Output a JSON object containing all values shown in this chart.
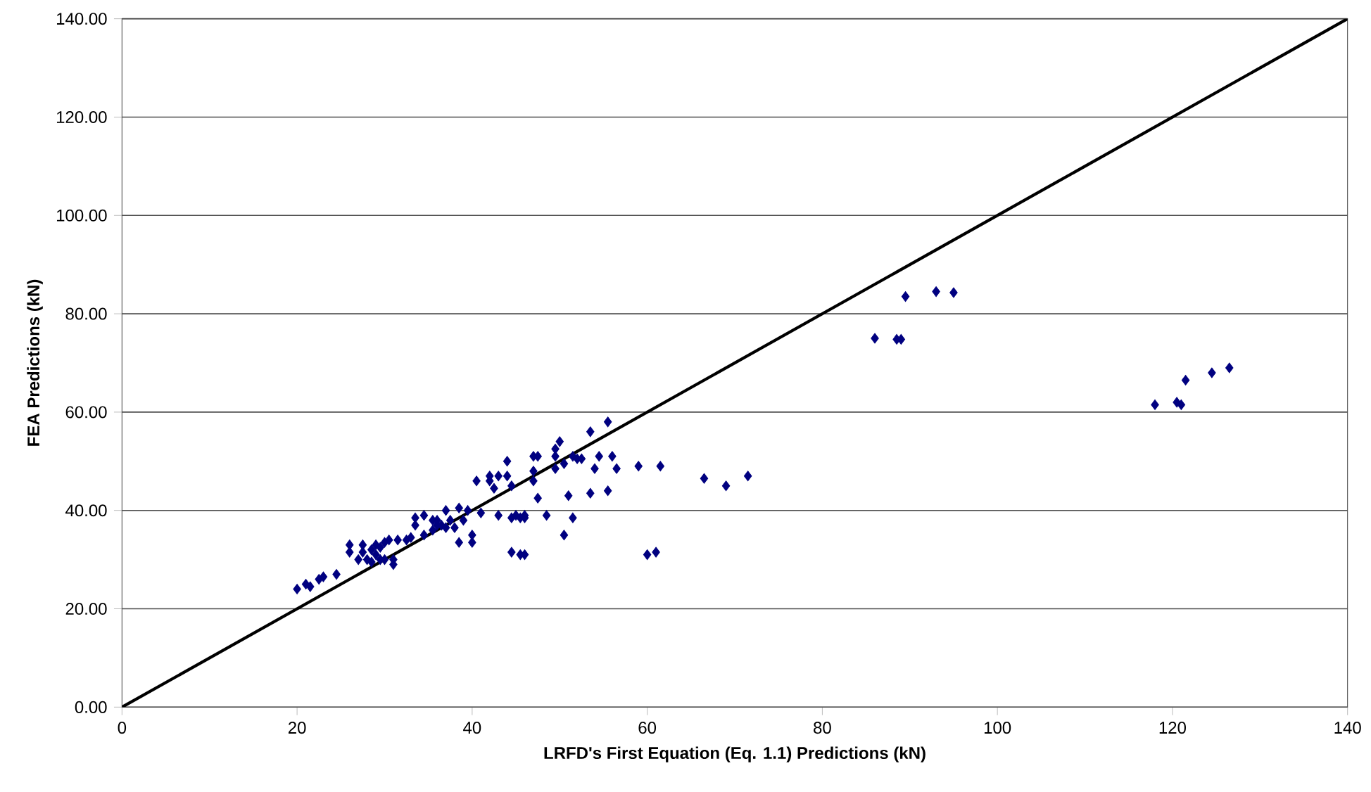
{
  "chart_data": {
    "type": "scatter",
    "xlabel": "LRFD's First Equation (Eq. 1.1) Predictions (kN)",
    "ylabel": "FEA Predictions (kN)",
    "xlim": [
      0,
      140
    ],
    "ylim": [
      0,
      140
    ],
    "xticks": [
      0,
      20,
      40,
      60,
      80,
      100,
      120,
      140
    ],
    "yticks": [
      {
        "value": 0,
        "label": "0.00"
      },
      {
        "value": 20,
        "label": "20.00"
      },
      {
        "value": 40,
        "label": "40.00"
      },
      {
        "value": 60,
        "label": "60.00"
      },
      {
        "value": 80,
        "label": "80.00"
      },
      {
        "value": 100,
        "label": "100.00"
      },
      {
        "value": 120,
        "label": "120.00"
      },
      {
        "value": 140,
        "label": "140.00"
      }
    ],
    "grid": "y",
    "series": [
      {
        "marker": "diamond",
        "color": "#000080",
        "x": [
          20,
          21,
          21.5,
          22.5,
          23,
          24.5,
          26,
          26,
          27,
          27.5,
          27.5,
          28,
          28.5,
          28.5,
          29,
          29,
          29.5,
          29.5,
          30,
          30,
          30.5,
          31,
          31,
          31.5,
          32.5,
          33,
          33.5,
          33.5,
          34.5,
          34.5,
          35.5,
          35.5,
          36,
          36,
          36.5,
          37,
          37,
          37.5,
          38,
          38.5,
          38.5,
          39,
          39.5,
          40,
          40,
          40.5,
          41,
          42,
          42,
          42.5,
          43,
          43,
          44,
          44,
          44.5,
          44.5,
          44.5,
          45,
          45.5,
          45.5,
          46,
          46,
          46,
          47,
          47,
          47,
          47.5,
          47.5,
          48.5,
          49.5,
          49.5,
          49.5,
          50,
          50.5,
          50.5,
          51,
          51.5,
          51.5,
          52,
          52.5,
          53.5,
          53.5,
          54,
          54.5,
          55.5,
          55.5,
          56,
          56.5,
          59,
          60,
          61,
          61.5,
          66.5,
          69,
          71.5,
          86,
          88.5,
          89,
          89.5,
          93,
          95,
          118,
          120.5,
          121,
          121.5,
          124.5,
          126.5
        ],
        "values": [
          24,
          25,
          24.5,
          26,
          26.5,
          27,
          31.5,
          33,
          30,
          31.5,
          33,
          30,
          32,
          29.5,
          31,
          33,
          30,
          32.5,
          30,
          33.5,
          34,
          29,
          30,
          34,
          34,
          34.5,
          37,
          38.5,
          35,
          39,
          38,
          36,
          37,
          38,
          37,
          40,
          36.5,
          38,
          36.5,
          40.5,
          33.5,
          38,
          40,
          35,
          33.5,
          46,
          39.5,
          47,
          46,
          44.5,
          47,
          39,
          47,
          50,
          38.5,
          31.5,
          45,
          39,
          38.5,
          31,
          31,
          38.5,
          39,
          51,
          48,
          46,
          51,
          42.5,
          39,
          52.5,
          51,
          48.5,
          54,
          49.5,
          35,
          43,
          51,
          38.5,
          50.5,
          50.5,
          56,
          43.5,
          48.5,
          51,
          58,
          44,
          51,
          48.5,
          49,
          31,
          31.5,
          49,
          46.5,
          45,
          47,
          75,
          74.8,
          74.8,
          83.5,
          84.5,
          84.3,
          61.5,
          62,
          61.5,
          66.5,
          68,
          69
        ]
      },
      {
        "type": "line",
        "marker": "none",
        "line_style": "solid",
        "color": "#000000",
        "x": [
          0,
          140
        ],
        "values": [
          0,
          140
        ]
      }
    ]
  }
}
